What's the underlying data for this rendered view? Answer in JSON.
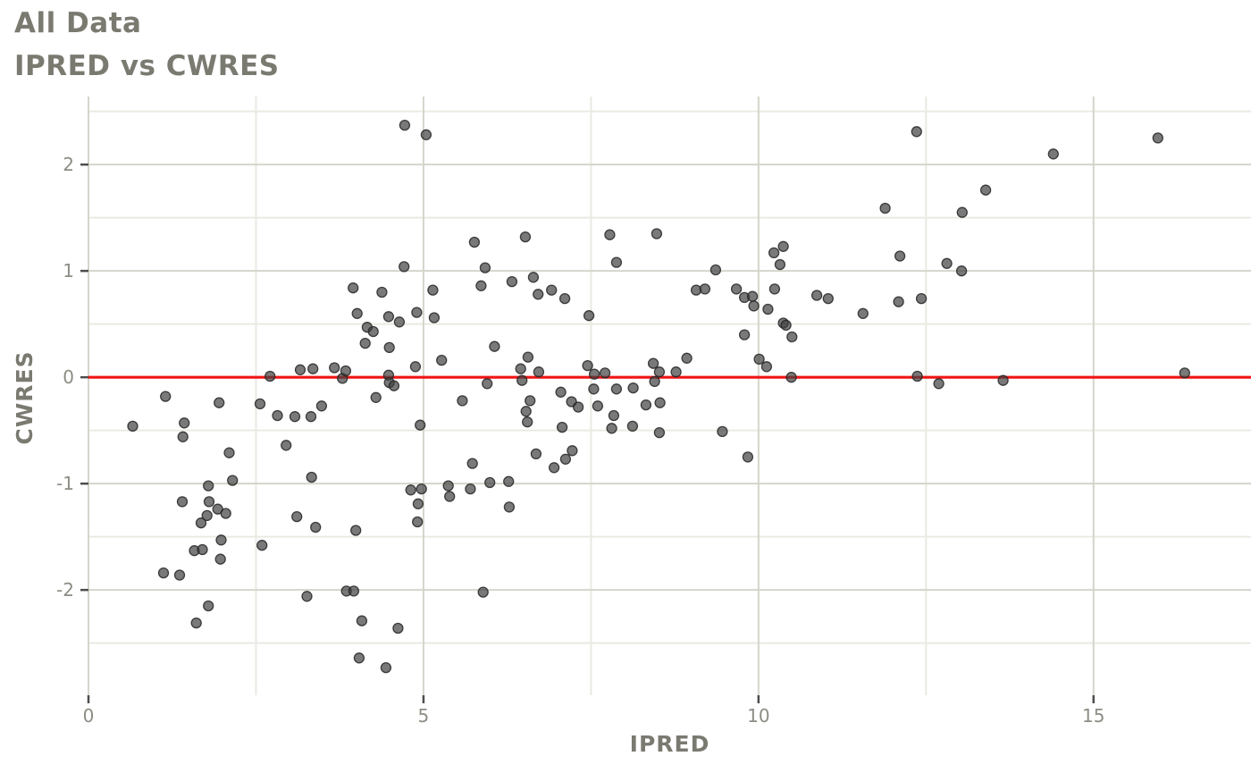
{
  "header": {
    "title": "All Data",
    "subtitle": "IPRED vs CWRES"
  },
  "chart_data": {
    "type": "scatter",
    "title": "All Data",
    "subtitle": "IPRED vs CWRES",
    "xlabel": "IPRED",
    "ylabel": "CWRES",
    "xlim": [
      0,
      17.35
    ],
    "ylim": [
      -2.99,
      2.64
    ],
    "x_major_ticks": [
      0,
      5,
      10,
      15
    ],
    "x_tick_labels": [
      "0",
      "5",
      "10",
      "15"
    ],
    "x_minor_ticks": [
      2.5,
      7.5,
      12.5
    ],
    "y_major_ticks": [
      -2,
      -1,
      0,
      1,
      2
    ],
    "y_tick_labels": [
      "-2",
      "-1",
      "0",
      "1",
      "2"
    ],
    "y_minor_ticks": [
      -2.5,
      -1.5,
      -0.5,
      0.5,
      1.5,
      2.5
    ],
    "grid": "on",
    "legend": "none",
    "reference_line": {
      "y": 0,
      "color": "#f01515"
    },
    "colors": {
      "point_fill": "#404040",
      "point_stroke": "#262626",
      "grid_major": "#d5d5cb",
      "grid_minor": "#eaeae3",
      "tick_mark": "#4d4d4d",
      "tick_label": "#8d8d85",
      "title_text": "#7b7a71"
    },
    "points": [
      [
        0.66,
        -0.46
      ],
      [
        1.12,
        -1.84
      ],
      [
        1.15,
        -0.18
      ],
      [
        1.36,
        -1.86
      ],
      [
        1.4,
        -1.17
      ],
      [
        1.41,
        -0.56
      ],
      [
        1.43,
        -0.43
      ],
      [
        1.58,
        -1.63
      ],
      [
        1.61,
        -2.31
      ],
      [
        1.68,
        -1.37
      ],
      [
        1.7,
        -1.62
      ],
      [
        1.77,
        -1.3
      ],
      [
        1.79,
        -1.02
      ],
      [
        1.79,
        -2.15
      ],
      [
        1.8,
        -1.17
      ],
      [
        1.93,
        -1.24
      ],
      [
        1.95,
        -0.24
      ],
      [
        1.97,
        -1.71
      ],
      [
        1.98,
        -1.53
      ],
      [
        2.05,
        -1.28
      ],
      [
        2.1,
        -0.71
      ],
      [
        2.15,
        -0.97
      ],
      [
        2.56,
        -0.25
      ],
      [
        2.59,
        -1.58
      ],
      [
        2.71,
        0.01
      ],
      [
        2.82,
        -0.36
      ],
      [
        2.95,
        -0.64
      ],
      [
        3.08,
        -0.37
      ],
      [
        3.11,
        -1.31
      ],
      [
        3.16,
        0.07
      ],
      [
        3.26,
        -2.06
      ],
      [
        3.32,
        -0.37
      ],
      [
        3.33,
        -0.94
      ],
      [
        3.35,
        0.08
      ],
      [
        3.39,
        -1.41
      ],
      [
        3.48,
        -0.27
      ],
      [
        3.67,
        0.09
      ],
      [
        3.79,
        -0.01
      ],
      [
        3.84,
        0.06
      ],
      [
        3.85,
        -2.01
      ],
      [
        3.95,
        0.84
      ],
      [
        3.96,
        -2.01
      ],
      [
        3.99,
        -1.44
      ],
      [
        4.01,
        0.6
      ],
      [
        4.04,
        -2.64
      ],
      [
        4.08,
        -2.29
      ],
      [
        4.13,
        0.32
      ],
      [
        4.16,
        0.47
      ],
      [
        4.25,
        0.43
      ],
      [
        4.29,
        -0.19
      ],
      [
        4.38,
        0.8
      ],
      [
        4.44,
        -2.73
      ],
      [
        4.48,
        0.57
      ],
      [
        4.48,
        0.02
      ],
      [
        4.49,
        0.28
      ],
      [
        4.49,
        -0.05
      ],
      [
        4.56,
        -0.08
      ],
      [
        4.62,
        -2.36
      ],
      [
        4.64,
        0.52
      ],
      [
        4.71,
        1.04
      ],
      [
        4.72,
        2.37
      ],
      [
        4.81,
        -1.06
      ],
      [
        4.88,
        0.1
      ],
      [
        4.9,
        0.61
      ],
      [
        4.91,
        -1.36
      ],
      [
        4.92,
        -1.19
      ],
      [
        4.95,
        -0.45
      ],
      [
        4.97,
        -1.05
      ],
      [
        5.04,
        2.28
      ],
      [
        5.14,
        0.82
      ],
      [
        5.16,
        0.56
      ],
      [
        5.27,
        0.16
      ],
      [
        5.37,
        -1.02
      ],
      [
        5.39,
        -1.12
      ],
      [
        5.58,
        -0.22
      ],
      [
        5.7,
        -1.05
      ],
      [
        5.73,
        -0.81
      ],
      [
        5.76,
        1.27
      ],
      [
        5.86,
        0.86
      ],
      [
        5.89,
        -2.02
      ],
      [
        5.92,
        1.03
      ],
      [
        5.95,
        -0.06
      ],
      [
        5.99,
        -0.99
      ],
      [
        6.06,
        0.29
      ],
      [
        6.27,
        -0.98
      ],
      [
        6.28,
        -1.22
      ],
      [
        6.32,
        0.9
      ],
      [
        6.45,
        0.08
      ],
      [
        6.47,
        -0.03
      ],
      [
        6.52,
        1.32
      ],
      [
        6.53,
        -0.32
      ],
      [
        6.55,
        -0.42
      ],
      [
        6.56,
        0.19
      ],
      [
        6.59,
        -0.22
      ],
      [
        6.64,
        0.94
      ],
      [
        6.68,
        -0.72
      ],
      [
        6.71,
        0.78
      ],
      [
        6.72,
        0.05
      ],
      [
        6.91,
        0.82
      ],
      [
        6.95,
        -0.85
      ],
      [
        7.05,
        -0.14
      ],
      [
        7.07,
        -0.47
      ],
      [
        7.11,
        0.74
      ],
      [
        7.12,
        -0.77
      ],
      [
        7.21,
        -0.23
      ],
      [
        7.22,
        -0.69
      ],
      [
        7.31,
        -0.28
      ],
      [
        7.45,
        0.11
      ],
      [
        7.47,
        0.58
      ],
      [
        7.54,
        -0.11
      ],
      [
        7.55,
        0.03
      ],
      [
        7.6,
        -0.27
      ],
      [
        7.71,
        0.04
      ],
      [
        7.78,
        1.34
      ],
      [
        7.81,
        -0.48
      ],
      [
        7.84,
        -0.36
      ],
      [
        7.88,
        1.08
      ],
      [
        7.88,
        -0.11
      ],
      [
        8.12,
        -0.46
      ],
      [
        8.13,
        -0.1
      ],
      [
        8.32,
        -0.26
      ],
      [
        8.43,
        0.13
      ],
      [
        8.45,
        -0.04
      ],
      [
        8.48,
        1.35
      ],
      [
        8.52,
        0.05
      ],
      [
        8.52,
        -0.52
      ],
      [
        8.53,
        -0.24
      ],
      [
        8.77,
        0.05
      ],
      [
        8.93,
        0.18
      ],
      [
        9.07,
        0.82
      ],
      [
        9.2,
        0.83
      ],
      [
        9.36,
        1.01
      ],
      [
        9.46,
        -0.51
      ],
      [
        9.67,
        0.83
      ],
      [
        9.79,
        0.75
      ],
      [
        9.79,
        0.4
      ],
      [
        9.84,
        -0.75
      ],
      [
        9.91,
        0.76
      ],
      [
        9.93,
        0.67
      ],
      [
        10.01,
        0.17
      ],
      [
        10.12,
        0.1
      ],
      [
        10.14,
        0.64
      ],
      [
        10.23,
        1.17
      ],
      [
        10.24,
        0.83
      ],
      [
        10.32,
        1.06
      ],
      [
        10.37,
        1.23
      ],
      [
        10.37,
        0.51
      ],
      [
        10.41,
        0.49
      ],
      [
        10.49,
        0.0
      ],
      [
        10.5,
        0.38
      ],
      [
        10.87,
        0.77
      ],
      [
        11.04,
        0.74
      ],
      [
        11.56,
        0.6
      ],
      [
        11.89,
        1.59
      ],
      [
        12.09,
        0.71
      ],
      [
        12.11,
        1.14
      ],
      [
        12.36,
        2.31
      ],
      [
        12.37,
        0.01
      ],
      [
        12.43,
        0.74
      ],
      [
        12.69,
        -0.06
      ],
      [
        12.81,
        1.07
      ],
      [
        13.03,
        1.0
      ],
      [
        13.04,
        1.55
      ],
      [
        13.39,
        1.76
      ],
      [
        13.65,
        -0.03
      ],
      [
        14.4,
        2.1
      ],
      [
        15.96,
        2.25
      ],
      [
        16.36,
        0.04
      ]
    ]
  }
}
